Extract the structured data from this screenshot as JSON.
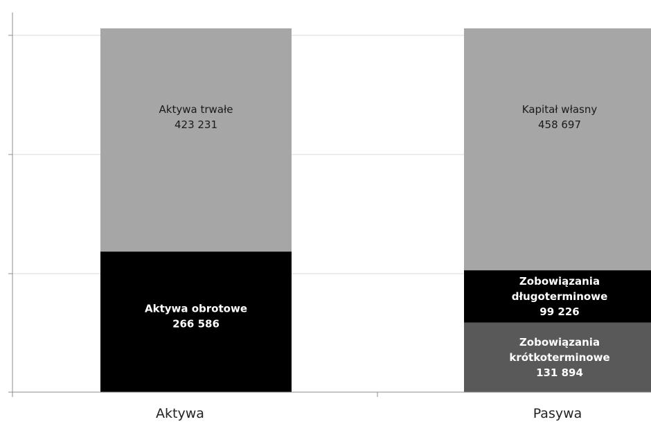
{
  "chart_data": {
    "type": "bar",
    "stacked": true,
    "categories": [
      "Aktywa",
      "Pasywa"
    ],
    "grid": true,
    "ylim": [
      0,
      720000
    ],
    "bars": [
      {
        "category": "Aktywa",
        "segments": [
          {
            "lines": [
              "Aktywa obrotowe",
              "266 586"
            ],
            "value": 266586,
            "color": "#000000",
            "text_color": "#ffffff",
            "bold": true
          },
          {
            "lines": [
              "Aktywa trwałe",
              "423 231"
            ],
            "value": 423231,
            "color": "#a6a6a6",
            "text_color": "#1a1a1a",
            "bold": false
          }
        ]
      },
      {
        "category": "Pasywa",
        "segments": [
          {
            "lines": [
              "Zobowiązania",
              "krótkoterminowe",
              "131 894"
            ],
            "value": 131894,
            "color": "#595959",
            "text_color": "#ffffff",
            "bold": true
          },
          {
            "lines": [
              "Zobowiązania",
              "długoterminowe",
              "99 226"
            ],
            "value": 99226,
            "color": "#000000",
            "text_color": "#ffffff",
            "bold": true
          },
          {
            "lines": [
              "Kapitał własny",
              "458 697"
            ],
            "value": 458697,
            "color": "#a6a6a6",
            "text_color": "#1a1a1a",
            "bold": false
          }
        ]
      }
    ]
  }
}
